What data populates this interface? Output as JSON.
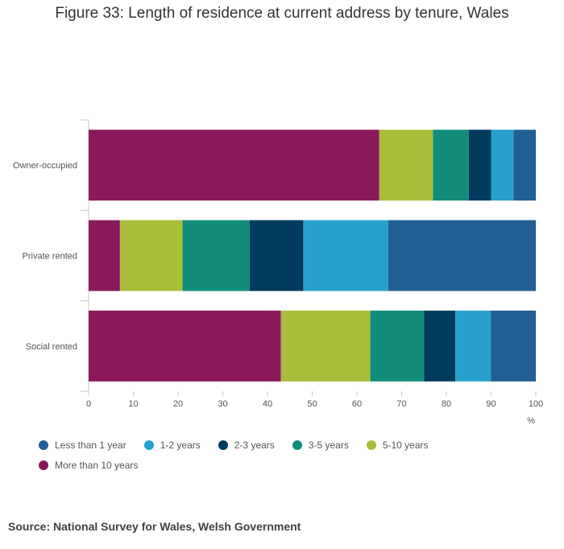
{
  "title": "Figure 33: Length of residence at current address by tenure, Wales",
  "source": "Source: National Survey for Wales, Welsh Government",
  "chart_data": {
    "type": "bar",
    "orientation": "horizontal",
    "stacked": true,
    "categories": [
      "Owner-occupied",
      "Private rented",
      "Social rented"
    ],
    "series": [
      {
        "name": "More than 10 years",
        "color": "#8a1a5b",
        "values": [
          65,
          7,
          43
        ]
      },
      {
        "name": "5-10 years",
        "color": "#a8bd3a",
        "values": [
          12,
          14,
          20
        ]
      },
      {
        "name": "3-5 years",
        "color": "#118c7b",
        "values": [
          8,
          15,
          12
        ]
      },
      {
        "name": "2-3 years",
        "color": "#003a5d",
        "values": [
          5,
          12,
          7
        ]
      },
      {
        "name": "1-2 years",
        "color": "#27a0cc",
        "values": [
          5,
          19,
          8
        ]
      },
      {
        "name": "Less than 1 year",
        "color": "#206095",
        "values": [
          5,
          33,
          10
        ]
      }
    ],
    "legend_order": [
      "Less than 1 year",
      "1-2 years",
      "2-3 years",
      "3-5 years",
      "5-10 years",
      "More than 10 years"
    ],
    "xlim": [
      0,
      100
    ],
    "xticks": [
      0,
      10,
      20,
      30,
      40,
      50,
      60,
      70,
      80,
      90,
      100
    ],
    "xlabel": "%",
    "legend_position": "bottom-left"
  }
}
